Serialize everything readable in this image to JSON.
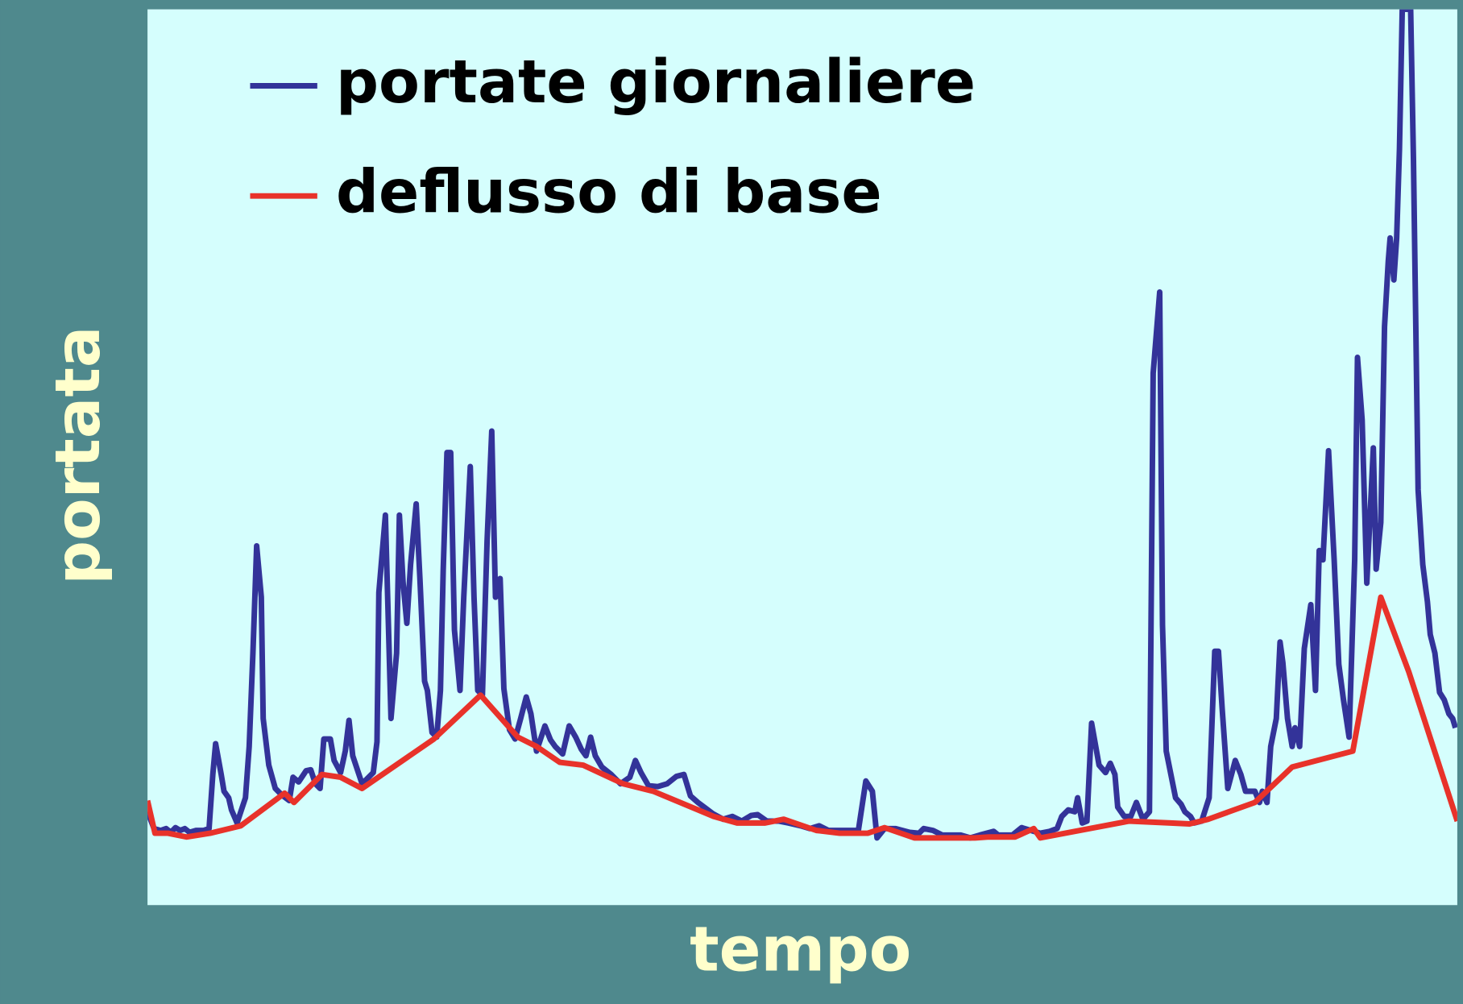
{
  "chart_data": {
    "type": "line",
    "x_label": "tempo",
    "y_label": "portata",
    "xlim": [
      0,
      1404
    ],
    "ylim": [
      0,
      960
    ],
    "legend": "upper left",
    "background": "#d5fefd",
    "series": [
      {
        "name": "portate giornaliere",
        "color": "#333399",
        "x": [
          0,
          7,
          14,
          20,
          25,
          30,
          35,
          40,
          45,
          52,
          60,
          66,
          70,
          73,
          79,
          82,
          87,
          90,
          96,
          100,
          105,
          109,
          113,
          117,
          122,
          124,
          130,
          137,
          144,
          152,
          156,
          162,
          170,
          175,
          180,
          185,
          189,
          196,
          200,
          207,
          212,
          216,
          220,
          225,
          230,
          235,
          242,
          246,
          248,
          255,
          261,
          267,
          270,
          274,
          278,
          282,
          288,
          292,
          297,
          300,
          305,
          310,
          314,
          317,
          321,
          325,
          329,
          335,
          339,
          346,
          350,
          354,
          359,
          364,
          369,
          373,
          378,
          382,
          388,
          394,
          400,
          406,
          411,
          417,
          426,
          432,
          437,
          445,
          452,
          459,
          465,
          470,
          475,
          480,
          487,
          497,
          507,
          517,
          523,
          529,
          537,
          547,
          557,
          567,
          575,
          582,
          590,
          598,
          606,
          617,
          627,
          637,
          647,
          654,
          664,
          677,
          687,
          700,
          710,
          720,
          730,
          740,
          762,
          770,
          777,
          782,
          790,
          802,
          817,
          827,
          832,
          842,
          852,
          872,
          882,
          892,
          907,
          912,
          927,
          937,
          947,
          957,
          967,
          975,
          980,
          987,
          994,
          997,
          1002,
          1007,
          1012,
          1020,
          1027,
          1032,
          1037,
          1040,
          1047,
          1054,
          1060,
          1067,
          1074,
          1078,
          1085,
          1088,
          1092,
          1098,
          1102,
          1108,
          1112,
          1118,
          1122,
          1130,
          1138,
          1144,
          1148,
          1152,
          1158,
          1166,
          1172,
          1177,
          1187,
          1192,
          1195,
          1200,
          1204,
          1210,
          1214,
          1217,
          1222,
          1227,
          1230,
          1235,
          1240,
          1247,
          1252,
          1256,
          1260,
          1266,
          1272,
          1277,
          1282,
          1288,
          1294,
          1297,
          1302,
          1307,
          1314,
          1317,
          1322,
          1326,
          1330,
          1332,
          1336,
          1339,
          1342,
          1345,
          1350,
          1354,
          1357,
          1362,
          1367,
          1372,
          1375,
          1380,
          1385,
          1390,
          1395,
          1399,
          1402
        ],
        "values": [
          100,
          82,
          80,
          82,
          78,
          83,
          80,
          82,
          78,
          80,
          80,
          82,
          140,
          173,
          140,
          122,
          115,
          102,
          88,
          100,
          115,
          170,
          270,
          385,
          330,
          200,
          150,
          125,
          118,
          112,
          137,
          132,
          144,
          145,
          130,
          125,
          178,
          178,
          155,
          142,
          165,
          198,
          160,
          145,
          130,
          135,
          142,
          175,
          335,
          418,
          200,
          270,
          418,
          345,
          302,
          365,
          430,
          350,
          240,
          230,
          185,
          180,
          230,
          360,
          485,
          485,
          295,
          230,
          330,
          470,
          330,
          230,
          225,
          390,
          508,
          330,
          350,
          232,
          188,
          178,
          200,
          223,
          205,
          165,
          192,
          177,
          170,
          162,
          192,
          180,
          167,
          160,
          180,
          160,
          148,
          140,
          130,
          137,
          155,
          142,
          128,
          127,
          130,
          138,
          140,
          117,
          110,
          104,
          98,
          92,
          95,
          90,
          96,
          97,
          90,
          90,
          88,
          85,
          82,
          85,
          80,
          80,
          80,
          133,
          122,
          72,
          82,
          82,
          78,
          77,
          82,
          80,
          75,
          75,
          72,
          75,
          79,
          75,
          75,
          83,
          80,
          77,
          79,
          82,
          95,
          102,
          100,
          115,
          88,
          90,
          195,
          150,
          142,
          152,
          140,
          105,
          95,
          95,
          110,
          92,
          100,
          570,
          657,
          300,
          165,
          135,
          115,
          108,
          100,
          95,
          88,
          90,
          115,
          272,
          272,
          210,
          125,
          155,
          140,
          122,
          122,
          110,
          122,
          110,
          170,
          200,
          282,
          260,
          200,
          170,
          190,
          170,
          275,
          322,
          230,
          380,
          370,
          487,
          370,
          258,
          220,
          180,
          370,
          587,
          520,
          345,
          490,
          360,
          410,
          620,
          690,
          715,
          670,
          715,
          810,
          960,
          960,
          960,
          800,
          445,
          365,
          325,
          290,
          270,
          228,
          220,
          205,
          200,
          190
        ]
      },
      {
        "name": "deflusso di base",
        "color": "#e8322a",
        "x": [
          0,
          8,
          22,
          42,
          67,
          100,
          147,
          157,
          187,
          207,
          230,
          307,
          357,
          397,
          417,
          442,
          467,
          510,
          542,
          607,
          632,
          662,
          682,
          717,
          742,
          772,
          790,
          822,
          877,
          887,
          902,
          930,
          950,
          957,
          1052,
          1097,
          1117,
          1137,
          1187,
          1227,
          1292,
          1322,
          1352,
          1404
        ],
        "values": [
          112,
          77,
          77,
          73,
          77,
          85,
          120,
          110,
          140,
          137,
          125,
          178,
          225,
          180,
          170,
          153,
          150,
          130,
          122,
          95,
          88,
          88,
          92,
          80,
          77,
          77,
          83,
          72,
          72,
          72,
          73,
          73,
          82,
          72,
          90,
          88,
          87,
          92,
          110,
          148,
          165,
          330,
          250,
          90
        ]
      }
    ]
  }
}
